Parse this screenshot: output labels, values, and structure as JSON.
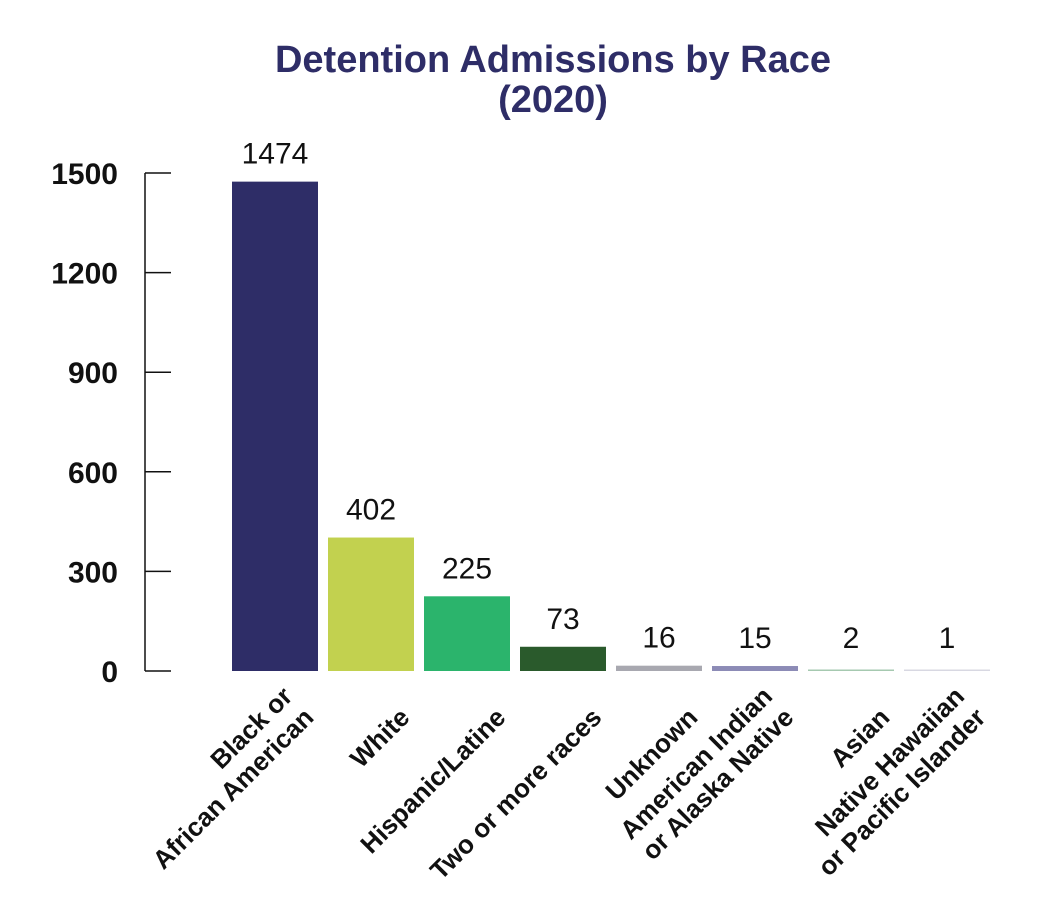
{
  "chart_data": {
    "type": "bar",
    "title_lines": [
      "Detention Admissions by Race",
      "(2020)"
    ],
    "categories": [
      [
        "Black or",
        "African American"
      ],
      [
        "White"
      ],
      [
        "Hispanic/Latine"
      ],
      [
        "Two or more races"
      ],
      [
        "Unknown"
      ],
      [
        "American Indian",
        "or Alaska Native"
      ],
      [
        "Asian"
      ],
      [
        "Native Hawaiian",
        "or Pacific Islander"
      ]
    ],
    "values": [
      1474,
      402,
      225,
      73,
      16,
      15,
      2,
      1
    ],
    "data_labels": [
      "1474",
      "402",
      "225",
      "73",
      "16",
      "15",
      "2",
      "1"
    ],
    "colors": [
      "#2e2d67",
      "#c2d14f",
      "#2bb46c",
      "#2a5a2c",
      "#a8a8b0",
      "#8c8bb6",
      "#a6c9b0",
      "#d8d8e2"
    ],
    "yticks": [
      0,
      300,
      600,
      900,
      1200,
      1500
    ],
    "ylim": [
      0,
      1500
    ],
    "xlabel": "",
    "ylabel": "",
    "grid": false,
    "legend": "none"
  }
}
